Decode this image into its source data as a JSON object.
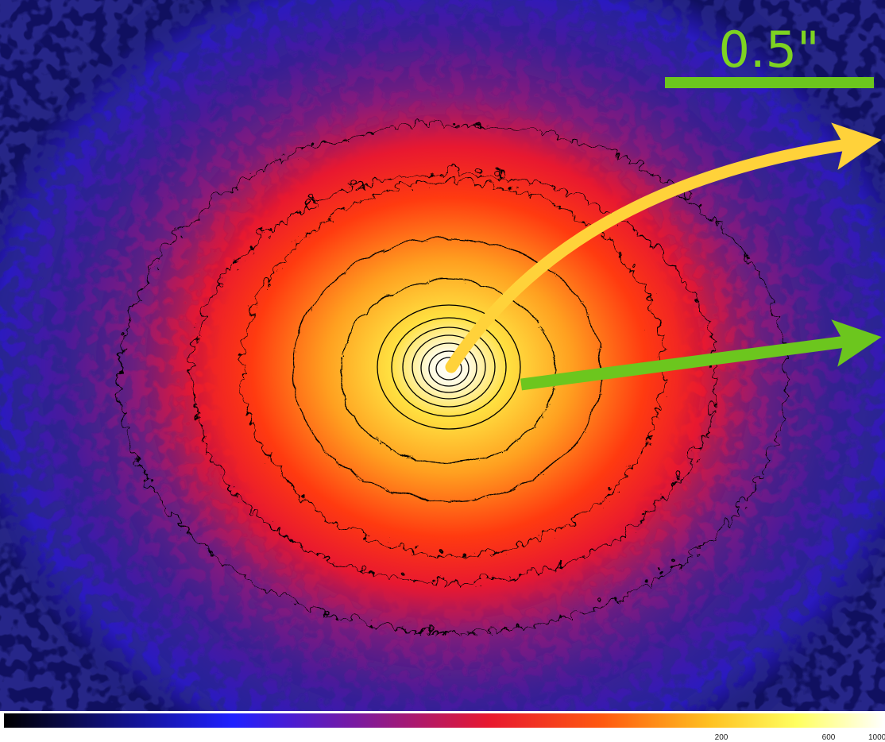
{
  "scale_bar": {
    "label": "0.5\""
  },
  "colorbar": {
    "ticks": [
      200,
      600,
      1000
    ]
  }
}
